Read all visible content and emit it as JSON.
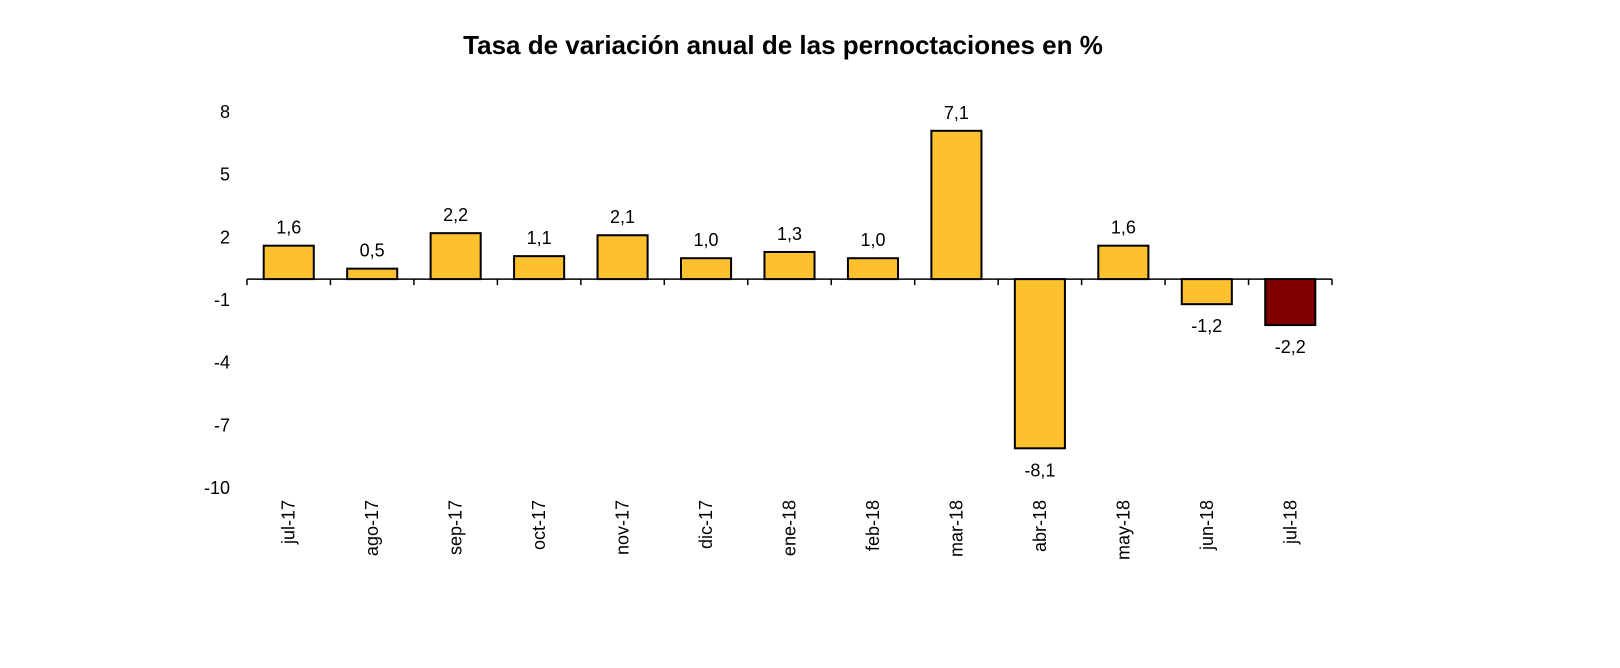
{
  "chart_data": {
    "type": "bar",
    "title": "Tasa de variación anual de las pernoctaciones en %",
    "xlabel": "",
    "ylabel": "",
    "categories": [
      "jul-17",
      "ago-17",
      "sep-17",
      "oct-17",
      "nov-17",
      "dic-17",
      "ene-18",
      "feb-18",
      "mar-18",
      "abr-18",
      "may-18",
      "jun-18",
      "jul-18"
    ],
    "values": [
      1.6,
      0.5,
      2.2,
      1.1,
      2.1,
      1.0,
      1.3,
      1.0,
      7.1,
      -8.1,
      1.6,
      -1.2,
      -2.2
    ],
    "value_labels": [
      "1,6",
      "0,5",
      "2,2",
      "1,1",
      "2,1",
      "1,0",
      "1,3",
      "1,0",
      "7,1",
      "-8,1",
      "1,6",
      "-1,2",
      "-2,2"
    ],
    "yticks": [
      8,
      5,
      2,
      -1,
      -4,
      -7,
      -10
    ],
    "ytick_labels": [
      "8",
      "5",
      "2",
      "-1",
      "-4",
      "-7",
      "-10"
    ],
    "ylim": [
      -10,
      8
    ],
    "grid": false,
    "legend": "none",
    "colors": {
      "default": "#FDC02F",
      "highlight": "#800000",
      "outline": "#000000"
    },
    "highlight_index": 12
  }
}
